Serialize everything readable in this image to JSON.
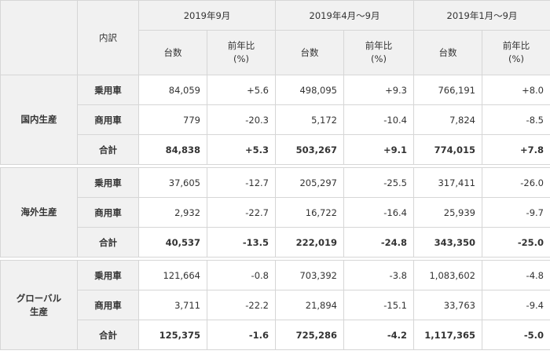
{
  "header": {
    "naiyaku": "内訳",
    "periods": [
      "2019年9月",
      "2019年4月～9月",
      "2019年1月～9月"
    ],
    "col_units": "台数",
    "col_yoy_line1": "前年比",
    "col_yoy_line2": "(%)"
  },
  "groups": [
    {
      "label_lines": [
        "国内生産"
      ],
      "rows": [
        {
          "label": "乗用車",
          "values": [
            "84,059",
            "+5.6",
            "498,095",
            "+9.3",
            "766,191",
            "+8.0"
          ]
        },
        {
          "label": "商用車",
          "values": [
            "779",
            "-20.3",
            "5,172",
            "-10.4",
            "7,824",
            "-8.5"
          ]
        },
        {
          "label": "合計",
          "values": [
            "84,838",
            "+5.3",
            "503,267",
            "+9.1",
            "774,015",
            "+7.8"
          ]
        }
      ]
    },
    {
      "label_lines": [
        "海外生産"
      ],
      "rows": [
        {
          "label": "乗用車",
          "values": [
            "37,605",
            "-12.7",
            "205,297",
            "-25.5",
            "317,411",
            "-26.0"
          ]
        },
        {
          "label": "商用車",
          "values": [
            "2,932",
            "-22.7",
            "16,722",
            "-16.4",
            "25,939",
            "-9.7"
          ]
        },
        {
          "label": "合計",
          "values": [
            "40,537",
            "-13.5",
            "222,019",
            "-24.8",
            "343,350",
            "-25.0"
          ]
        }
      ]
    },
    {
      "label_lines": [
        "グローバル",
        "生産"
      ],
      "rows": [
        {
          "label": "乗用車",
          "values": [
            "121,664",
            "-0.8",
            "703,392",
            "-3.8",
            "1,083,602",
            "-4.8"
          ]
        },
        {
          "label": "商用車",
          "values": [
            "3,711",
            "-22.2",
            "21,894",
            "-15.1",
            "33,763",
            "-9.4"
          ]
        },
        {
          "label": "合計",
          "values": [
            "125,375",
            "-1.6",
            "725,286",
            "-4.2",
            "1,117,365",
            "-5.0"
          ]
        }
      ]
    }
  ]
}
